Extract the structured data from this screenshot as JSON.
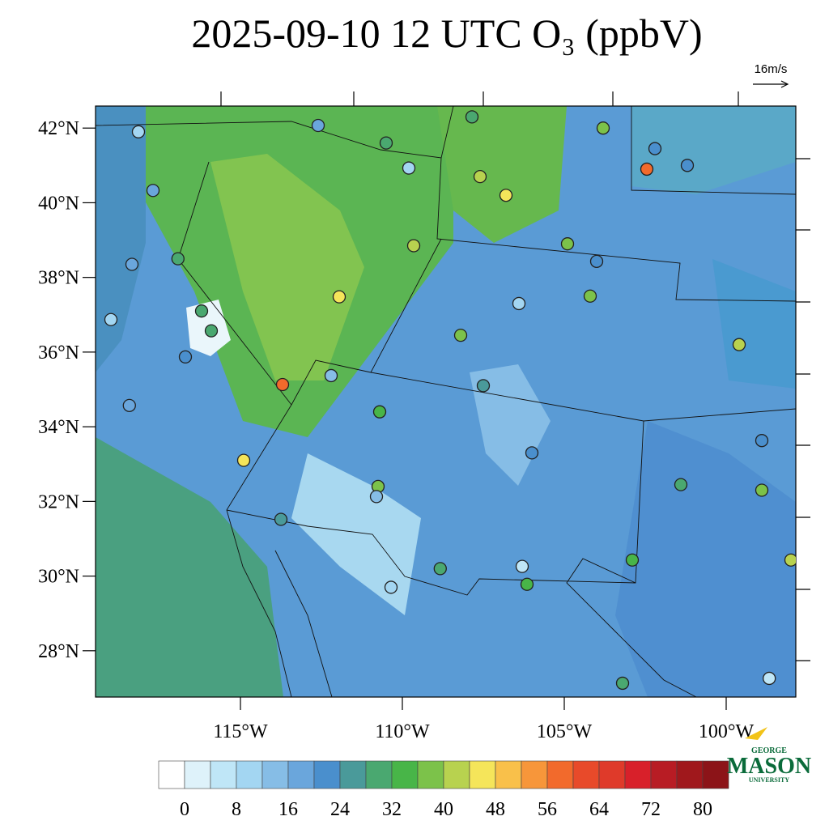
{
  "chart_data": {
    "type": "station-map",
    "title": "2025-09-10 12 UTC O₃ (ppbV)",
    "reference_vector": "16m/s",
    "xlim": [
      -119.475,
      -97.85
    ],
    "ylim": [
      26.76,
      42.59
    ],
    "xticks": [
      {
        "value": -115,
        "label": "115°W"
      },
      {
        "value": -110,
        "label": "110°W"
      },
      {
        "value": -105,
        "label": "105°W"
      },
      {
        "value": -100,
        "label": "100°W"
      }
    ],
    "yticks": [
      {
        "value": 42,
        "label": "42°N"
      },
      {
        "value": 40,
        "label": "40°N"
      },
      {
        "value": 38,
        "label": "38°N"
      },
      {
        "value": 36,
        "label": "36°N"
      },
      {
        "value": 34,
        "label": "34°N"
      },
      {
        "value": 32,
        "label": "32°N"
      },
      {
        "value": 30,
        "label": "30°N"
      },
      {
        "value": 28,
        "label": "28°N"
      }
    ],
    "colorbar": {
      "clim": [
        -4,
        84
      ],
      "ticks": [
        0,
        8,
        16,
        24,
        32,
        40,
        48,
        56,
        64,
        72,
        80
      ],
      "colors": [
        "#ffffff",
        "#def2fa",
        "#bfe6f7",
        "#a3d6f2",
        "#86bde6",
        "#6aa6dc",
        "#4a8fcd",
        "#4a9a9a",
        "#4aa870",
        "#48b548",
        "#7cc24a",
        "#b8d24f",
        "#f5e55a",
        "#f9c04a",
        "#f7963a",
        "#f26a2c",
        "#e84a2a",
        "#df3a2a",
        "#d8202a",
        "#b81c24",
        "#a0181c",
        "#8c1418"
      ]
    },
    "stations": {
      "lon": [
        -118.15,
        -112.6,
        -110.5,
        -107.85,
        -103.8,
        -102.2,
        -102.45,
        -101.2,
        -106.8,
        -107.6,
        -109.8,
        -109.65,
        -111.95,
        -104.9,
        -104.2,
        -106.4,
        -108.2,
        -99.6,
        -113.7,
        -114.9,
        -112.2,
        -110.7,
        -110.75,
        -110.8,
        -108.83,
        -106.15,
        -106.3,
        -102.9,
        -103.2,
        -98.9,
        -98.9,
        -98.0,
        -98.67,
        -116.2,
        -115.9,
        -116.93,
        -118.35,
        -119.0,
        -118.43,
        -117.7,
        -116.7,
        -113.75,
        -110.35,
        -104.0,
        -106.0,
        -107.5,
        -101.4
      ],
      "lat": [
        41.9,
        42.07,
        41.6,
        42.3,
        42.0,
        41.45,
        40.9,
        41.0,
        40.2,
        40.7,
        40.93,
        38.85,
        37.48,
        38.9,
        37.5,
        37.3,
        36.45,
        36.2,
        35.13,
        33.1,
        35.37,
        34.4,
        32.4,
        32.13,
        30.2,
        29.78,
        30.26,
        30.43,
        27.13,
        32.3,
        33.63,
        30.43,
        27.26,
        37.1,
        36.57,
        38.5,
        38.35,
        36.87,
        34.57,
        40.33,
        35.87,
        31.52,
        29.7,
        38.43,
        33.3,
        35.1,
        32.45
      ],
      "values": [
        10,
        18,
        30,
        30,
        38,
        22,
        58,
        22,
        46,
        42,
        8,
        40,
        44,
        38,
        36,
        10,
        38,
        40,
        56,
        46,
        14,
        34,
        38,
        12,
        30,
        34,
        6,
        34,
        30,
        38,
        20,
        42,
        6,
        30,
        28,
        30,
        16,
        8,
        18,
        16,
        20,
        26,
        8,
        22,
        22,
        24,
        30
      ]
    },
    "logo": {
      "line1": "GEORGE",
      "line2": "MASON",
      "line3": "UNIVERSITY"
    }
  }
}
